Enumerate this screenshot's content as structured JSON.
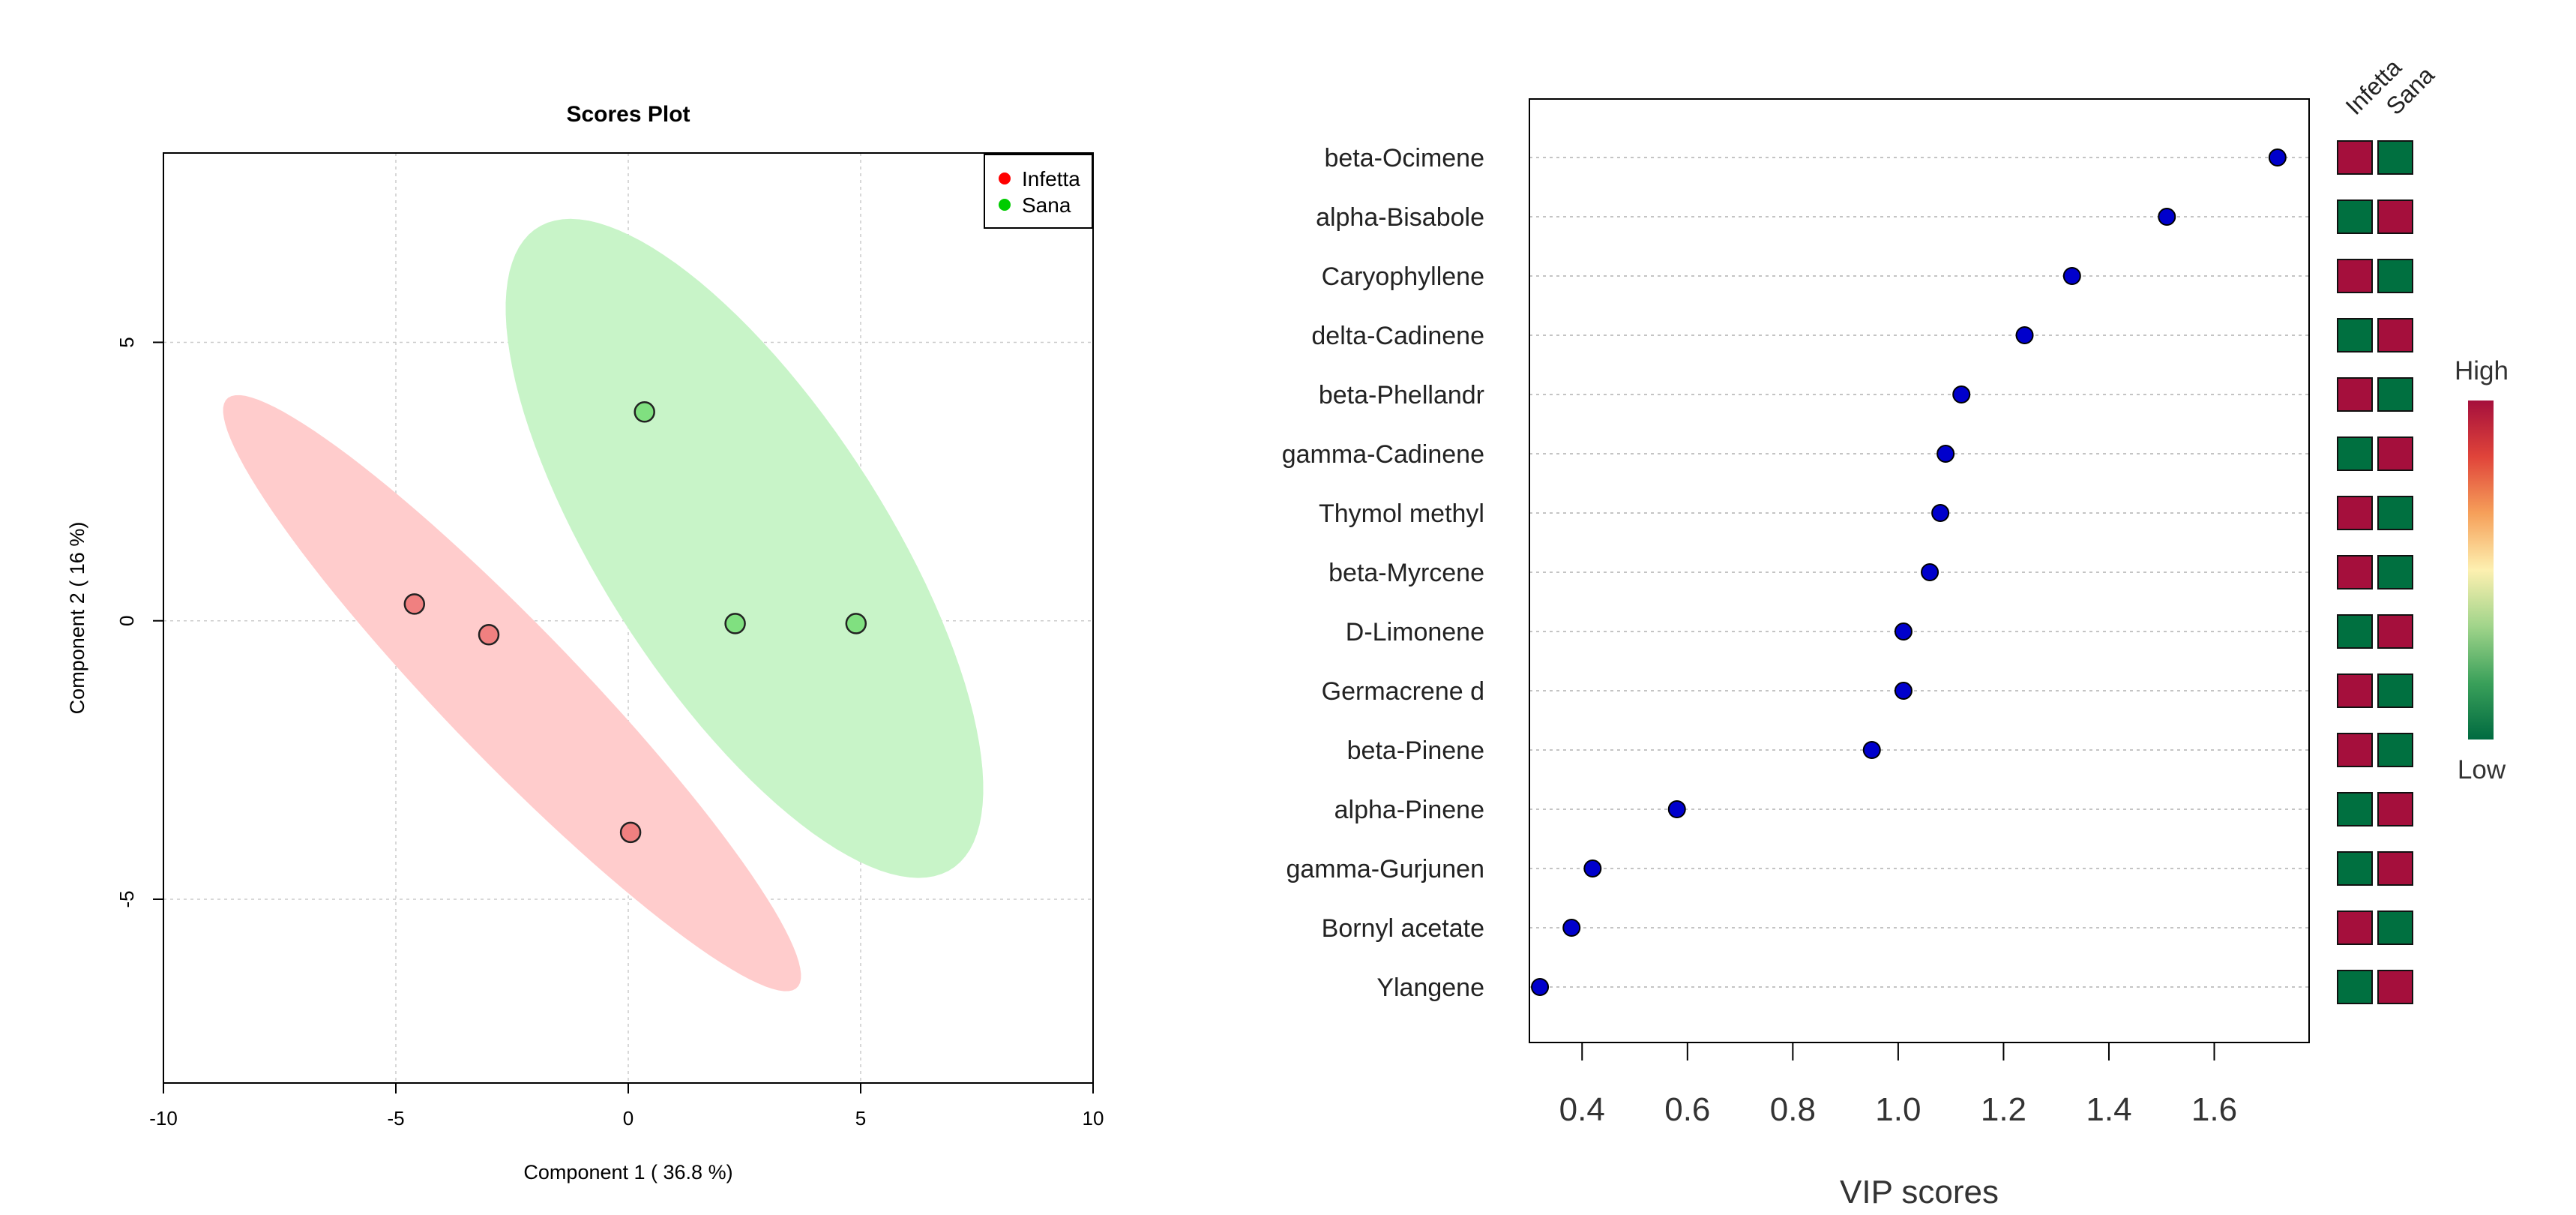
{
  "chart_data": [
    {
      "type": "scatter",
      "title": "Scores Plot",
      "xlabel": "Component 1 ( 36.8 %)",
      "ylabel": "Component 2 ( 16 %)",
      "xlim": [
        -10,
        10
      ],
      "ylim": [
        -8.3,
        8.4
      ],
      "x_ticks": [
        -10,
        -5,
        0,
        5,
        10
      ],
      "x_tick_labels": [
        "-10",
        "-5",
        "0",
        "5",
        "10"
      ],
      "y_ticks": [
        -5,
        0,
        5
      ],
      "y_tick_labels": [
        "-5",
        "0",
        "5"
      ],
      "grid": true,
      "legend_position": "top-right",
      "series": [
        {
          "name": "Infetta",
          "color": "#ff0000",
          "point_fill": "#f08080",
          "ellipse_fill": "#ffcccc",
          "points": [
            [
              -4.6,
              0.3
            ],
            [
              -3.0,
              -0.25
            ],
            [
              0.05,
              -3.8
            ]
          ],
          "ellipse": {
            "center": [
              -2.5,
              -1.3
            ],
            "semi_major": 8.1,
            "semi_minor": 1.3,
            "angle_deg": -40.5
          }
        },
        {
          "name": "Sana",
          "color": "#00cc00",
          "point_fill": "#80e080",
          "ellipse_fill": "#c8f4c8",
          "points": [
            [
              0.35,
              3.75
            ],
            [
              2.3,
              -0.05
            ],
            [
              4.9,
              -0.05
            ]
          ],
          "ellipse": {
            "center": [
              2.5,
              1.3
            ],
            "semi_major": 7.3,
            "semi_minor": 2.85,
            "angle_deg": -50.5
          }
        }
      ]
    },
    {
      "type": "scatter",
      "subtype": "vip_dotplot",
      "xlabel": "VIP scores",
      "xlim": [
        0.3,
        1.78
      ],
      "x_ticks": [
        0.4,
        0.6,
        0.8,
        1.0,
        1.2,
        1.4,
        1.6
      ],
      "x_tick_labels": [
        "0.4",
        "0.6",
        "0.8",
        "1.0",
        "1.2",
        "1.4",
        "1.6"
      ],
      "point_color": "#0000cc",
      "features": [
        "beta-Ocimene",
        "alpha-Bisabole",
        "Caryophyllene",
        "delta-Cadinene",
        "beta-Phellandr",
        "gamma-Cadinene",
        "Thymol methyl ",
        "beta-Myrcene",
        "D-Limonene",
        "Germacrene d",
        "beta-Pinene",
        "alpha-Pinene",
        "gamma-Gurjunen",
        "Bornyl acetate",
        "Ylangene"
      ],
      "values": [
        1.72,
        1.51,
        1.33,
        1.24,
        1.12,
        1.09,
        1.08,
        1.06,
        1.01,
        1.01,
        0.95,
        0.58,
        0.42,
        0.38,
        0.32
      ],
      "groups": [
        "Infetta",
        "Sana"
      ],
      "group_levels": [
        [
          "high",
          "low"
        ],
        [
          "low",
          "high"
        ],
        [
          "high",
          "low"
        ],
        [
          "low",
          "high"
        ],
        [
          "high",
          "low"
        ],
        [
          "low",
          "high"
        ],
        [
          "high",
          "low"
        ],
        [
          "high",
          "low"
        ],
        [
          "low",
          "high"
        ],
        [
          "high",
          "low"
        ],
        [
          "high",
          "low"
        ],
        [
          "low",
          "high"
        ],
        [
          "low",
          "high"
        ],
        [
          "high",
          "low"
        ],
        [
          "low",
          "high"
        ]
      ],
      "level_colors": {
        "high": "#a50f3c",
        "low": "#007040"
      },
      "colorbar": {
        "high_label": "High",
        "low_label": "Low",
        "gradient": [
          "#a50f3c",
          "#e0443a",
          "#f6a05a",
          "#fdf0b0",
          "#a0d48a",
          "#3aa05a",
          "#006a40"
        ]
      }
    }
  ]
}
